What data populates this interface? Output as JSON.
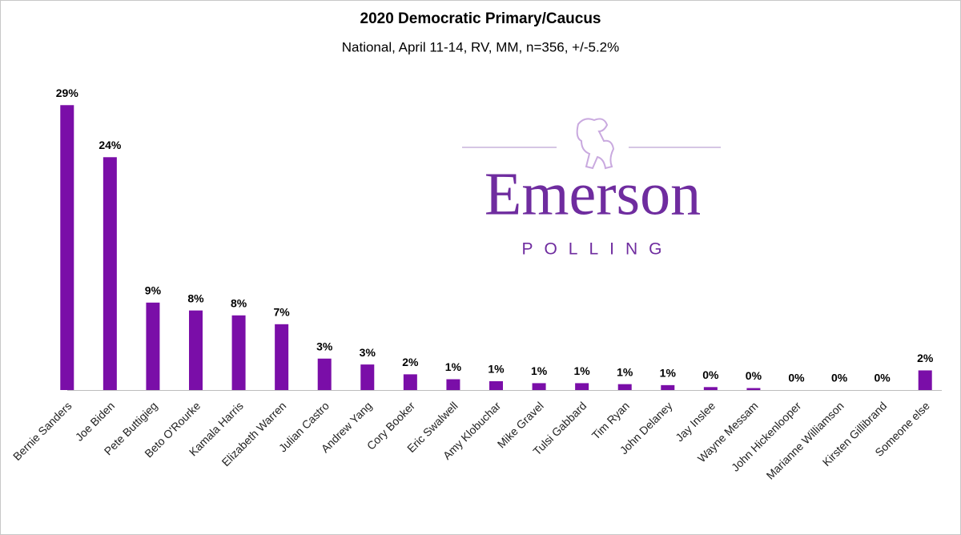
{
  "chart_data": {
    "type": "bar",
    "title": "2020 Democratic Primary/Caucus",
    "subtitle": "National, April 11-14, RV, MM, n=356, +/-5.2%",
    "categories": [
      "Bernie Sanders",
      "Joe Biden",
      "Pete Buttigieg",
      "Beto O'Rourke",
      "Kamala Harris",
      "Elizabeth Warren",
      "Julian Castro",
      "Andrew Yang",
      "Cory Booker",
      "Eric Swalwell",
      "Amy Klobuchar",
      "Mike Gravel",
      "Tulsi Gabbard",
      "Tim Ryan",
      "John Delaney",
      "Jay Inslee",
      "Wayne Messam",
      "John Hickenlooper",
      "Marianne Williamson",
      "Kirsten Gillibrand",
      "Someone else"
    ],
    "values": [
      29,
      23.7,
      8.9,
      8.1,
      7.6,
      6.7,
      3.2,
      2.6,
      1.6,
      1.1,
      0.9,
      0.7,
      0.7,
      0.6,
      0.5,
      0.3,
      0.2,
      0,
      0,
      0,
      2
    ],
    "value_labels": [
      "29%",
      "24%",
      "9%",
      "8%",
      "8%",
      "7%",
      "3%",
      "3%",
      "2%",
      "1%",
      "1%",
      "1%",
      "1%",
      "1%",
      "1%",
      "0%",
      "0%",
      "0%",
      "0%",
      "0%",
      "2%"
    ],
    "color": "#7a0ea8",
    "ylim": [
      0,
      30
    ],
    "grid": false
  },
  "logo": {
    "name": "Emerson",
    "tagline": "POLLING"
  }
}
